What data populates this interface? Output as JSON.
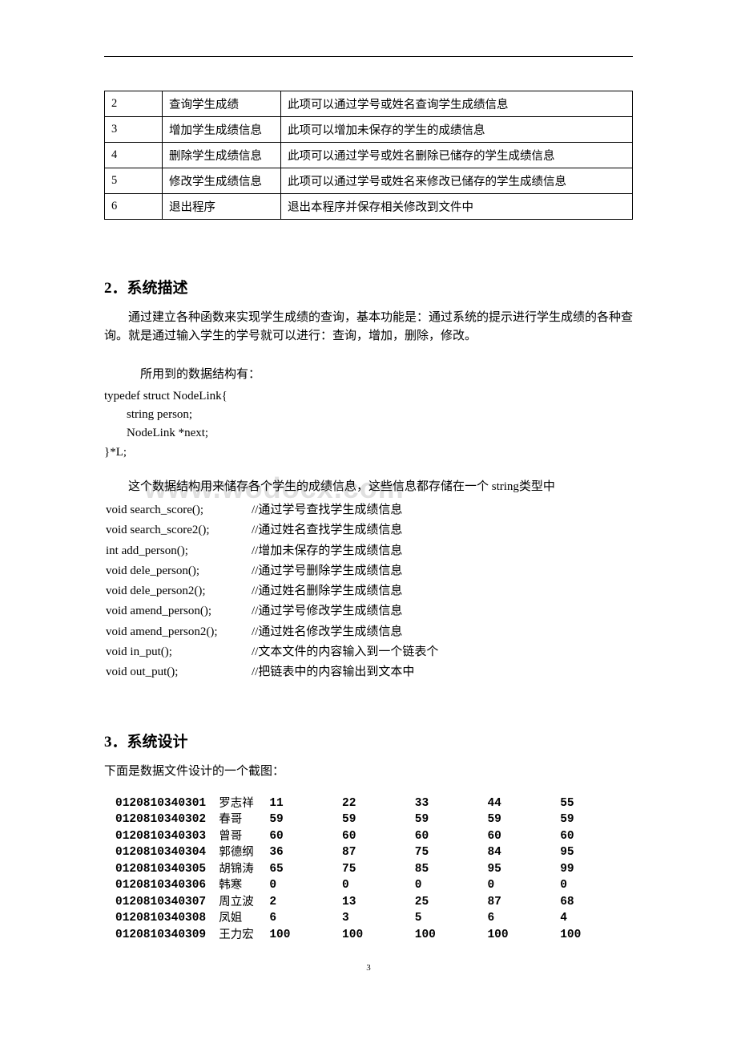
{
  "features": {
    "rows": [
      {
        "n": "2",
        "name": "查询学生成绩",
        "desc": "此项可以通过学号或姓名查询学生成绩信息"
      },
      {
        "n": "3",
        "name": "增加学生成绩信息",
        "desc": "此项可以增加未保存的学生的成绩信息"
      },
      {
        "n": "4",
        "name": "删除学生成绩信息",
        "desc": "此项可以通过学号或姓名删除已储存的学生成绩信息"
      },
      {
        "n": "5",
        "name": "修改学生成绩信息",
        "desc": "此项可以通过学号或姓名来修改已储存的学生成绩信息"
      },
      {
        "n": "6",
        "name": "退出程序",
        "desc": "退出本程序并保存相关修改到文件中"
      }
    ]
  },
  "section2": {
    "heading_num": "2．",
    "heading_text": "系统描述",
    "para1": "通过建立各种函数来实现学生成绩的查询，基本功能是：通过系统的提示进行学生成绩的各种查询。就是通过输入学生的学号就可以进行：查询，增加，删除，修改。",
    "struct_intro": "所用到的数据结构有：",
    "struct_code": [
      "typedef struct NodeLink{",
      "string person;",
      "NodeLink *next;",
      "}*L;"
    ],
    "para2": "这个数据结构用来储存各个学生的成绩信息，这些信息都存储在一个 string类型中",
    "watermark": "www.wodocx.com",
    "functions": [
      {
        "sig": "void search_score();",
        "cmt": "//通过学号查找学生成绩信息"
      },
      {
        "sig": "void search_score2();",
        "cmt": "//通过姓名查找学生成绩信息"
      },
      {
        "sig": "int add_person();",
        "cmt": "//增加未保存的学生成绩信息"
      },
      {
        "sig": "void dele_person();",
        "cmt": "//通过学号删除学生成绩信息"
      },
      {
        "sig": "void dele_person2();",
        "cmt": "//通过姓名删除学生成绩信息"
      },
      {
        "sig": "void amend_person();",
        "cmt": "//通过学号修改学生成绩信息"
      },
      {
        "sig": "void amend_person2();",
        "cmt": "//通过姓名修改学生成绩信息"
      },
      {
        "sig": "void in_put();",
        "cmt": "//文本文件的内容输入到一个链表个"
      },
      {
        "sig": "void out_put();",
        "cmt": "//把链表中的内容输出到文本中"
      }
    ]
  },
  "section3": {
    "heading_num": "3．",
    "heading_text": "系统设计",
    "intro": "下面是数据文件设计的一个截图：",
    "data": {
      "rows": [
        {
          "id": "0120810340301",
          "name": "罗志祥",
          "c": [
            "11",
            "22",
            "33",
            "44",
            "55"
          ]
        },
        {
          "id": "0120810340302",
          "name": "春哥",
          "c": [
            "59",
            "59",
            "59",
            "59",
            "59"
          ]
        },
        {
          "id": "0120810340303",
          "name": "曾哥",
          "c": [
            "60",
            "60",
            "60",
            "60",
            "60"
          ]
        },
        {
          "id": "0120810340304",
          "name": "郭德纲",
          "c": [
            "36",
            "87",
            "75",
            "84",
            "95"
          ]
        },
        {
          "id": "0120810340305",
          "name": "胡锦涛",
          "c": [
            "65",
            "75",
            "85",
            "95",
            "99"
          ]
        },
        {
          "id": "0120810340306",
          "name": "韩寒",
          "c": [
            "0",
            "0",
            "0",
            "0",
            "0"
          ]
        },
        {
          "id": "0120810340307",
          "name": "周立波",
          "c": [
            "2",
            "13",
            "25",
            "87",
            "68"
          ]
        },
        {
          "id": "0120810340308",
          "name": "凤姐",
          "c": [
            "6",
            "3",
            "5",
            "6",
            "4"
          ]
        },
        {
          "id": "0120810340309",
          "name": "王力宏",
          "c": [
            "100",
            "100",
            "100",
            "100",
            "100"
          ]
        }
      ]
    }
  },
  "page_number": "3"
}
